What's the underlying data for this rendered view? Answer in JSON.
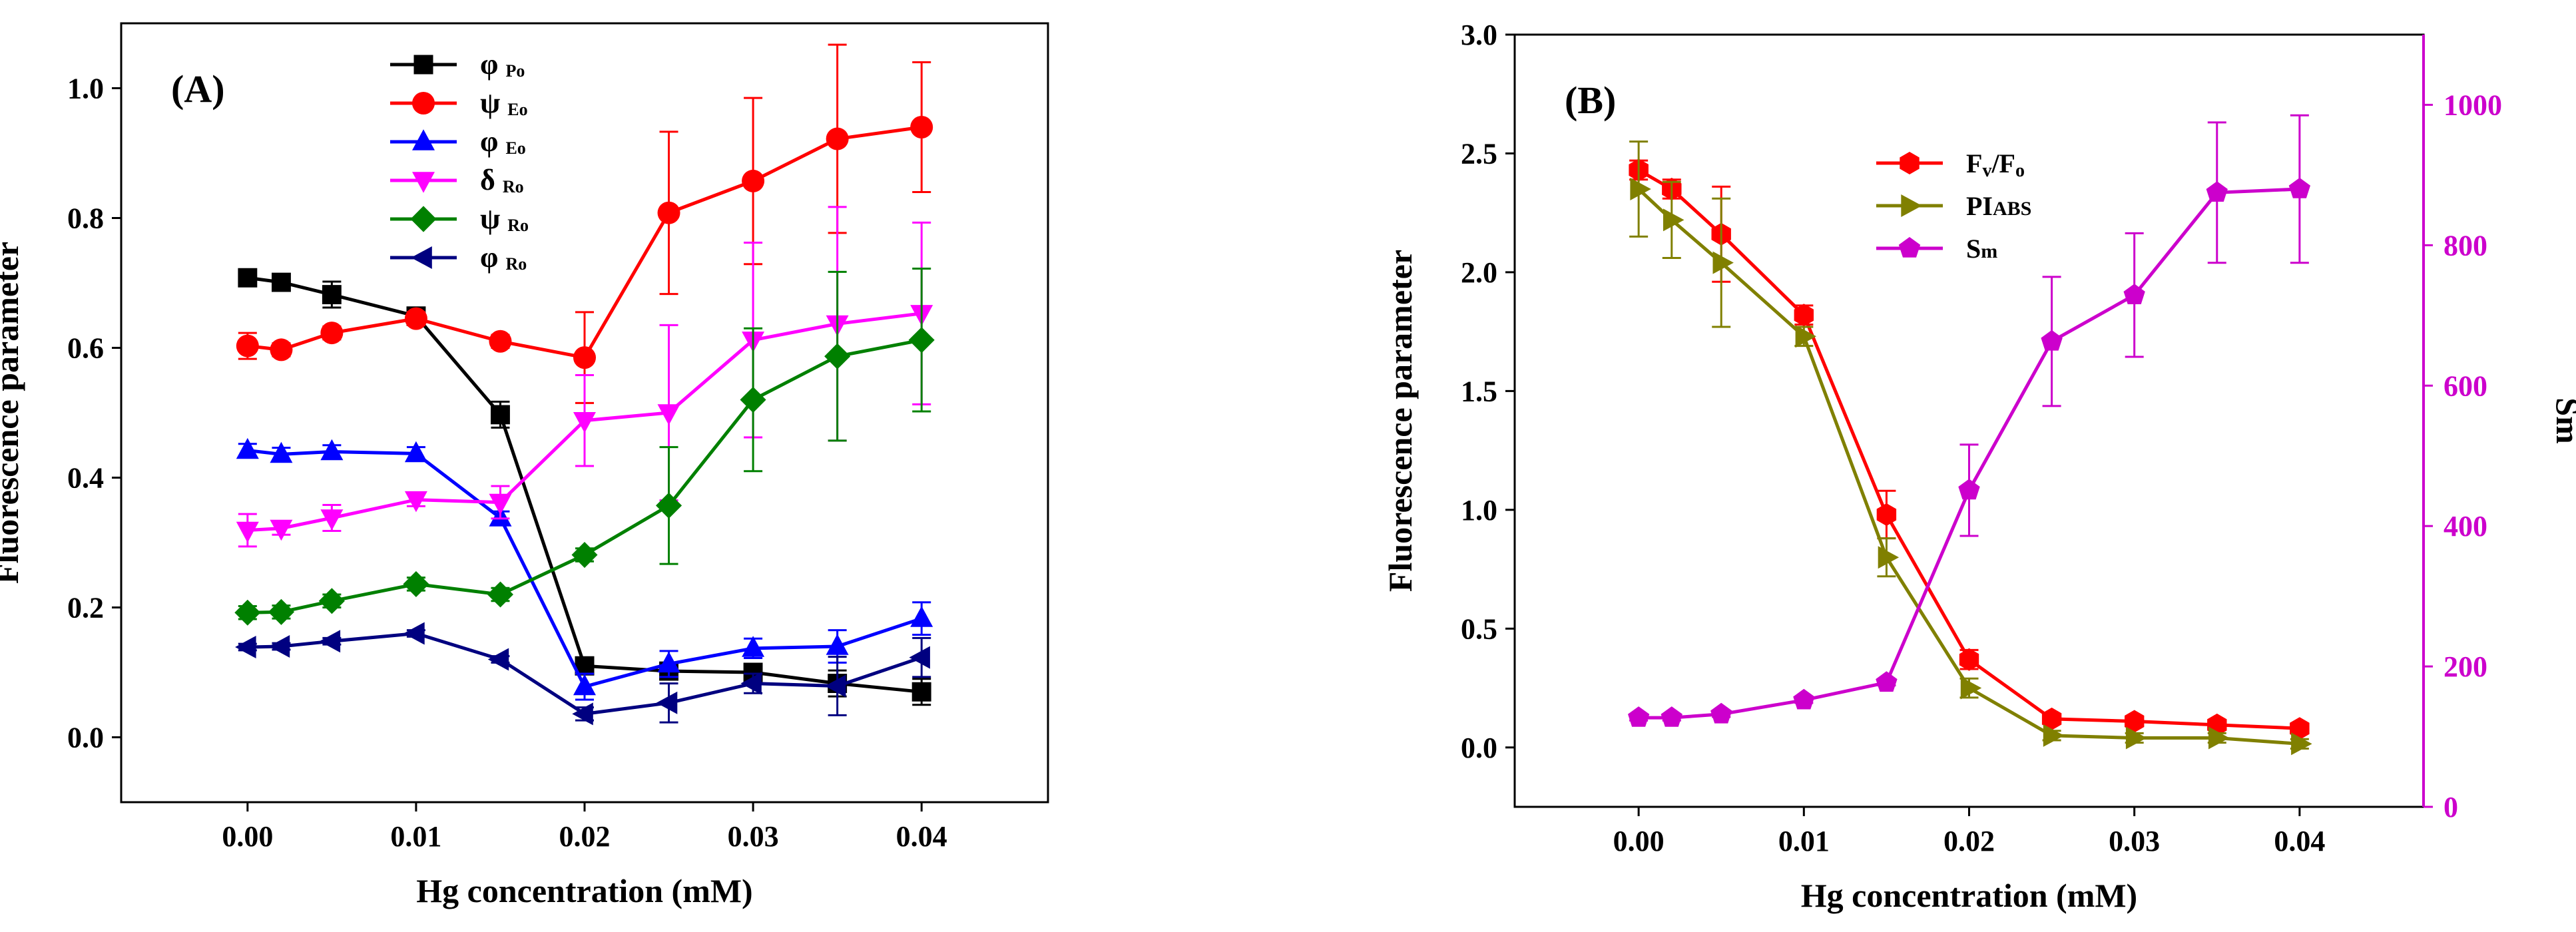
{
  "chart_data": [
    {
      "type": "line",
      "panel_label": "(A)",
      "xlabel": "Hg concentration (mM)",
      "ylabel": "Fluorescence parameter",
      "xlim": [
        -0.0075,
        0.0475
      ],
      "ylim": [
        -0.1,
        1.1
      ],
      "x_ticks": [
        0.0,
        0.01,
        0.02,
        0.03,
        0.04
      ],
      "x_tick_labels": [
        "0.00",
        "0.01",
        "0.02",
        "0.03",
        "0.04"
      ],
      "y_ticks": [
        0.0,
        0.2,
        0.4,
        0.6,
        0.8,
        1.0
      ],
      "y_tick_labels": [
        "0.0",
        "0.2",
        "0.4",
        "0.6",
        "0.8",
        "1.0"
      ],
      "legend_position": "top-center",
      "x": [
        0.0,
        0.002,
        0.005,
        0.01,
        0.015,
        0.02,
        0.025,
        0.03,
        0.035,
        0.04
      ],
      "series": [
        {
          "name": "φ Po",
          "main": "φ",
          "sub": "Po",
          "color": "#000000",
          "marker": "square",
          "values": [
            0.708,
            0.701,
            0.682,
            0.649,
            0.497,
            0.11,
            0.102,
            0.1,
            0.083,
            0.07
          ],
          "errors": [
            0.01,
            0.01,
            0.02,
            0.01,
            0.02,
            0.01,
            0.01,
            0.01,
            0.02,
            0.02
          ]
        },
        {
          "name": "ψ Eo",
          "main": "ψ",
          "sub": "Eo",
          "color": "#ff0000",
          "marker": "circle",
          "values": [
            0.603,
            0.597,
            0.623,
            0.645,
            0.61,
            0.585,
            0.808,
            0.857,
            0.922,
            0.94
          ],
          "errors": [
            0.02,
            0.01,
            0.01,
            0.01,
            0.01,
            0.07,
            0.125,
            0.128,
            0.145,
            0.1
          ]
        },
        {
          "name": "φ Eo",
          "main": "φ",
          "sub": "Eo",
          "color": "#0000ff",
          "marker": "triangle-up",
          "values": [
            0.442,
            0.436,
            0.44,
            0.437,
            0.338,
            0.078,
            0.113,
            0.137,
            0.14,
            0.183
          ],
          "errors": [
            0.01,
            0.01,
            0.01,
            0.01,
            0.01,
            0.02,
            0.02,
            0.015,
            0.025,
            0.025
          ]
        },
        {
          "name": "δ Ro",
          "main": "δ",
          "sub": "Ro",
          "color": "#ff00ff",
          "marker": "triangle-down",
          "values": [
            0.319,
            0.322,
            0.338,
            0.366,
            0.362,
            0.488,
            0.5,
            0.612,
            0.637,
            0.653
          ],
          "errors": [
            0.025,
            0.01,
            0.02,
            0.01,
            0.025,
            0.07,
            0.135,
            0.15,
            0.18,
            0.14
          ]
        },
        {
          "name": "ψ Ro",
          "main": "ψ",
          "sub": "Ro",
          "color": "#008000",
          "marker": "diamond",
          "values": [
            0.192,
            0.193,
            0.21,
            0.236,
            0.22,
            0.281,
            0.357,
            0.52,
            0.587,
            0.612
          ],
          "errors": [
            0.01,
            0.01,
            0.01,
            0.01,
            0.01,
            0.01,
            0.09,
            0.11,
            0.13,
            0.11
          ]
        },
        {
          "name": "φ Ro",
          "main": "φ",
          "sub": "Ro",
          "color": "#000080",
          "marker": "triangle-left",
          "values": [
            0.139,
            0.14,
            0.148,
            0.16,
            0.12,
            0.036,
            0.053,
            0.083,
            0.079,
            0.123
          ],
          "errors": [
            0.005,
            0.005,
            0.005,
            0.005,
            0.005,
            0.01,
            0.03,
            0.015,
            0.045,
            0.03
          ]
        }
      ]
    },
    {
      "type": "line",
      "panel_label": "(B)",
      "xlabel": "Hg concentration (mM)",
      "ylabel": "Fluorescence parameter",
      "y2label": "Sm",
      "xlim": [
        -0.0075,
        0.0475
      ],
      "ylim": [
        -0.25,
        3.0
      ],
      "y2lim": [
        0,
        1100
      ],
      "x_ticks": [
        0.0,
        0.01,
        0.02,
        0.03,
        0.04
      ],
      "x_tick_labels": [
        "0.00",
        "0.01",
        "0.02",
        "0.03",
        "0.04"
      ],
      "y_ticks": [
        0.0,
        0.5,
        1.0,
        1.5,
        2.0,
        2.5,
        3.0
      ],
      "y_tick_labels": [
        "0.0",
        "0.5",
        "1.0",
        "1.5",
        "2.0",
        "2.5",
        "3.0"
      ],
      "y2_ticks": [
        0,
        200,
        400,
        600,
        800,
        1000
      ],
      "y2_tick_labels": [
        "0",
        "200",
        "400",
        "600",
        "800",
        "1000"
      ],
      "y2_color": "#cc00cc",
      "legend_position": "top-center",
      "x": [
        0.0,
        0.002,
        0.005,
        0.01,
        0.015,
        0.02,
        0.025,
        0.03,
        0.035,
        0.04
      ],
      "series": [
        {
          "name": "Fv/Fo",
          "parts": [
            [
              "F",
              ""
            ],
            [
              "v",
              "sub"
            ],
            [
              "/F",
              ""
            ],
            [
              "o",
              "sub"
            ]
          ],
          "color": "#ff0000",
          "marker": "hexagon",
          "axis": "left",
          "values": [
            2.43,
            2.35,
            2.16,
            1.82,
            0.98,
            0.37,
            0.12,
            0.11,
            0.095,
            0.08
          ],
          "errors": [
            0.04,
            0.04,
            0.2,
            0.04,
            0.1,
            0.04,
            0.02,
            0.02,
            0.02,
            0.02
          ]
        },
        {
          "name": "PIABS",
          "parts": [
            [
              "PI",
              ""
            ],
            [
              "ABS",
              "small"
            ]
          ],
          "color": "#808000",
          "marker": "triangle-right",
          "axis": "left",
          "values": [
            2.35,
            2.22,
            2.04,
            1.73,
            0.8,
            0.25,
            0.05,
            0.04,
            0.04,
            0.015
          ],
          "errors": [
            0.2,
            0.16,
            0.27,
            0.04,
            0.08,
            0.04,
            0.02,
            0.02,
            0.02,
            0.02
          ]
        },
        {
          "name": "Sm",
          "parts": [
            [
              "S",
              ""
            ],
            [
              "m",
              "small"
            ]
          ],
          "color": "#cc00cc",
          "marker": "pentagon",
          "axis": "right",
          "values": [
            127,
            127,
            132,
            152,
            177,
            451,
            663,
            729,
            875,
            880
          ],
          "errors": [
            4,
            4,
            4,
            4,
            4,
            65,
            92,
            88,
            100,
            105
          ]
        }
      ]
    }
  ]
}
